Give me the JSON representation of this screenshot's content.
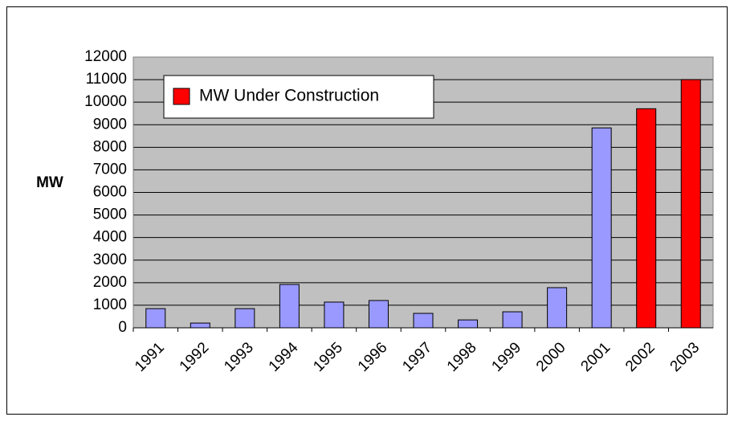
{
  "chart_data": {
    "type": "bar",
    "y_label": "MW",
    "categories": [
      "1991",
      "1992",
      "1993",
      "1994",
      "1995",
      "1996",
      "1997",
      "1998",
      "1999",
      "2000",
      "2001",
      "2002",
      "2003"
    ],
    "series": [
      {
        "color": "#9999ff",
        "values": [
          850,
          210,
          850,
          1920,
          1140,
          1210,
          640,
          350,
          710,
          1780,
          8860,
          null,
          null
        ]
      },
      {
        "name": "MW Under Construction",
        "color": "#ff0000",
        "values": [
          null,
          null,
          null,
          null,
          null,
          null,
          null,
          null,
          null,
          null,
          null,
          9710,
          11000
        ]
      }
    ],
    "ylim": [
      0,
      12000
    ],
    "yticks": [
      0,
      1000,
      2000,
      3000,
      4000,
      5000,
      6000,
      7000,
      8000,
      9000,
      10000,
      11000,
      12000
    ],
    "grid": true,
    "plot_background": "#c0c0c0"
  }
}
